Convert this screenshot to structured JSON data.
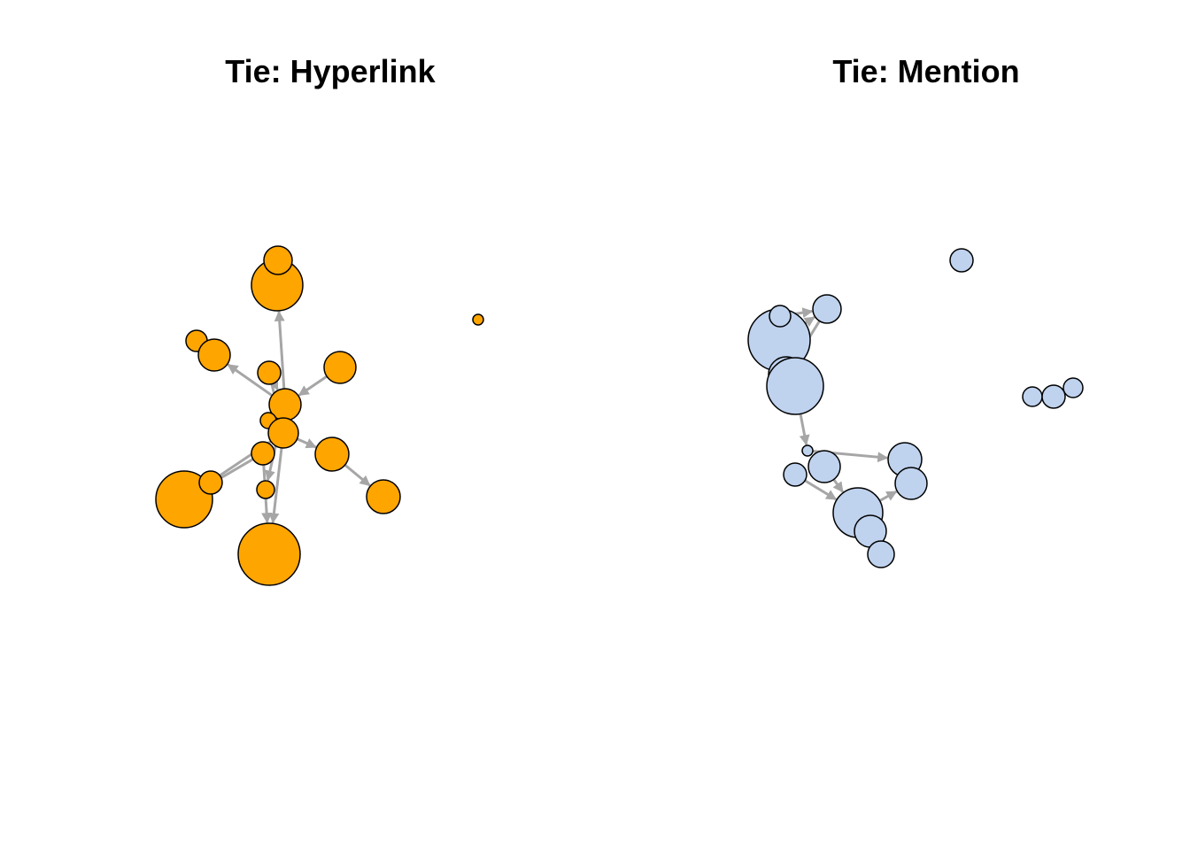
{
  "panels": [
    {
      "id": "hyperlink",
      "title": "Tie: Hyperlink",
      "node_color": "#FFA500",
      "edge_color": "#A6A6A6"
    },
    {
      "id": "mention",
      "title": "Tie: Mention",
      "node_color": "#BFD2EE",
      "edge_color": "#A6A6A6"
    }
  ]
}
